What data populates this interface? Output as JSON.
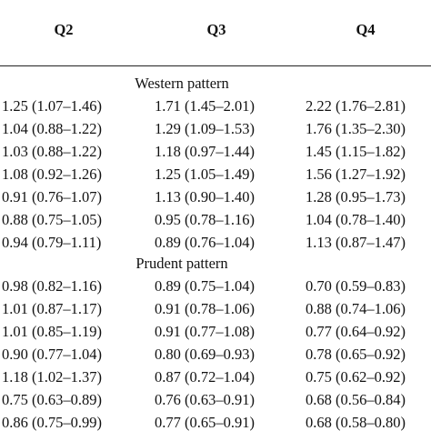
{
  "table": {
    "header": [
      "Q2",
      "Q3",
      "Q4"
    ],
    "sections": [
      {
        "title": "Western pattern",
        "rows": [
          [
            "1.25 (1.07–1.46)",
            "1.71 (1.45–2.01)",
            "2.22 (1.76–2.81)"
          ],
          [
            "1.04 (0.88–1.22)",
            "1.29 (1.09–1.53)",
            "1.76 (1.35–2.30)"
          ],
          [
            "1.03 (0.88–1.22)",
            "1.18 (0.97–1.44)",
            "1.45 (1.15–1.82)"
          ],
          [
            "1.08 (0.92–1.26)",
            "1.25 (1.05–1.49)",
            "1.56 (1.27–1.92)"
          ],
          [
            "0.91 (0.76–1.07)",
            "1.13 (0.90–1.40)",
            "1.28 (0.95–1.73)"
          ],
          [
            "0.88 (0.75–1.05)",
            "0.95 (0.78–1.16)",
            "1.04 (0.78–1.40)"
          ],
          [
            "0.94 (0.79–1.11)",
            "0.89 (0.76–1.04)",
            "1.13 (0.87–1.47)"
          ]
        ]
      },
      {
        "title": "Prudent pattern",
        "rows": [
          [
            "0.98 (0.82–1.16)",
            "0.89 (0.75–1.04)",
            "0.70 (0.59–0.83)"
          ],
          [
            "1.01 (0.87–1.17)",
            "0.91 (0.78–1.06)",
            "0.88 (0.74–1.06)"
          ],
          [
            "1.01 (0.85–1.19)",
            "0.91 (0.77–1.08)",
            "0.77 (0.64–0.92)"
          ],
          [
            "0.90 (0.77–1.04)",
            "0.80 (0.69–0.93)",
            "0.78 (0.65–0.92)"
          ],
          [
            "1.18 (1.02–1.37)",
            "0.87 (0.72–1.04)",
            "0.75 (0.62–0.92)"
          ],
          [
            "0.75 (0.63–0.89)",
            "0.76 (0.63–0.91)",
            "0.68 (0.56–0.84)"
          ],
          [
            "0.86 (0.75–0.99)",
            "0.77 (0.65–0.91)",
            "0.68 (0.58–0.80)"
          ]
        ]
      }
    ]
  }
}
